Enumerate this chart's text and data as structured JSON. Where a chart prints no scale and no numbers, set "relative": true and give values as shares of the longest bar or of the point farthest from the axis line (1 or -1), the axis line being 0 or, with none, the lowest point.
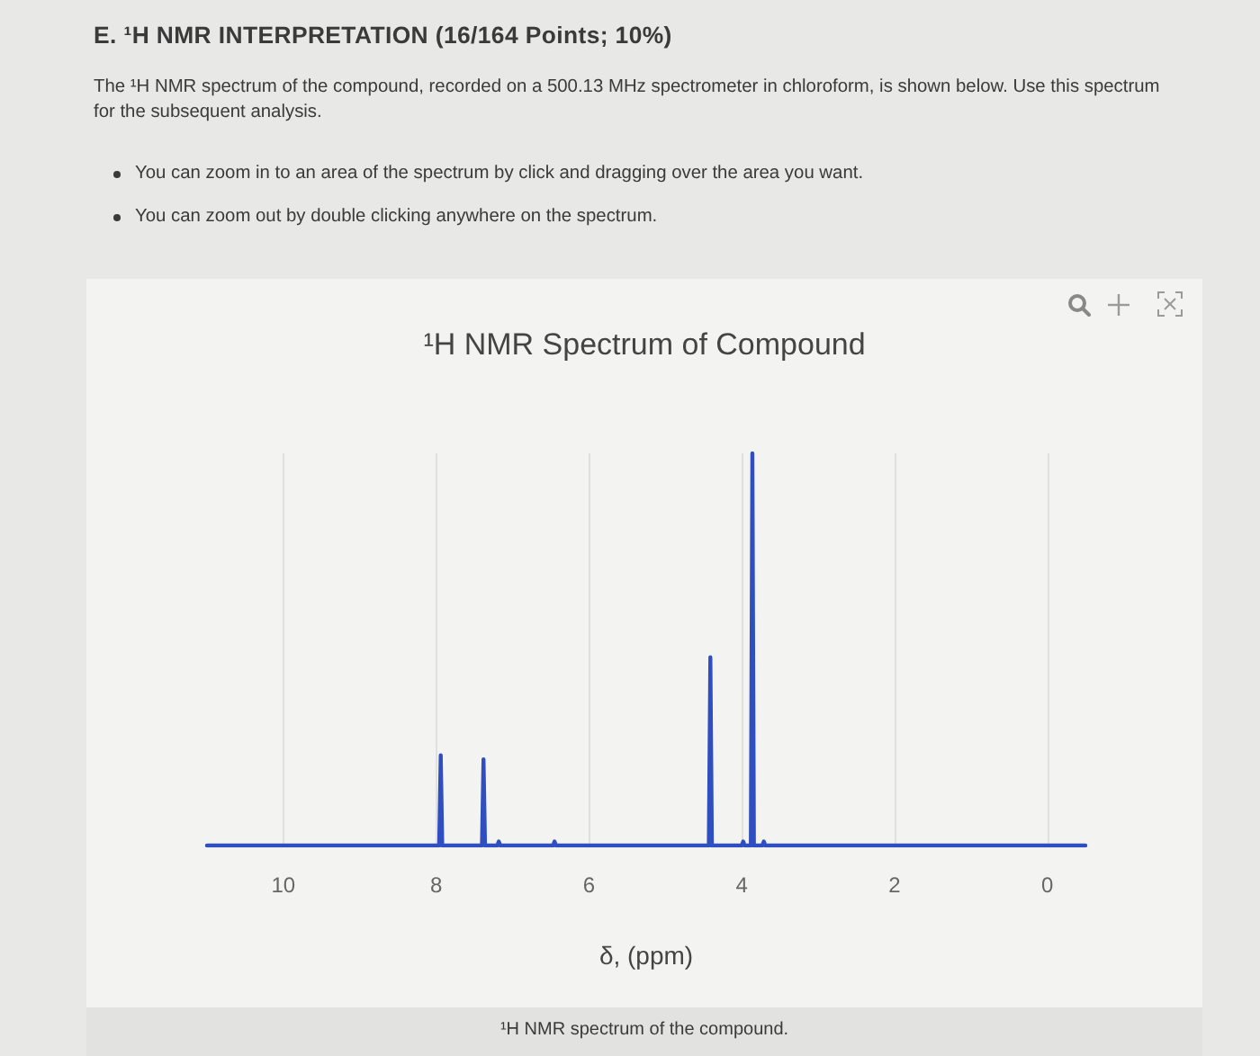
{
  "chart_data": {
    "type": "line",
    "title": "¹H NMR Spectrum of Compound",
    "xlabel": "δ, (ppm)",
    "annotations": [
      "E. ¹H NMR INTERPRETATION (16/164 Points; 10%)",
      "The ¹H NMR spectrum of the compound, recorded on a 500.13 MHz spectrometer in chloroform, is shown below. Use this spectrum for the subsequent analysis.",
      "You can zoom in to an area of the spectrum by click and dragging over the area you want.",
      "You can zoom out by double clicking anywhere on the spectrum.",
      "¹H NMR spectrum of the compound."
    ],
    "x": [
      11,
      7.96,
      7.94,
      7.92,
      7.4,
      7.38,
      7.36,
      7.2,
      7.18,
      7.16,
      6.47,
      6.45,
      6.43,
      4.43,
      4.41,
      4.39,
      4.0,
      3.98,
      3.96,
      3.88,
      3.86,
      3.84,
      3.73,
      3.71,
      3.69,
      -0.5
    ],
    "values": [
      0,
      0,
      0.23,
      0,
      0,
      0.22,
      0,
      0,
      0.01,
      0,
      0,
      0.01,
      0,
      0,
      0.48,
      0,
      0,
      0.01,
      0,
      0,
      1,
      0,
      0,
      0.01,
      0,
      0
    ],
    "color": "#2f4fc0",
    "relative": true,
    "xlim": [
      11,
      -0.5
    ],
    "xticks": [
      10,
      8,
      6,
      4,
      2,
      0
    ],
    "grid": "x",
    "marker": "none",
    "line_style": "solid",
    "tick_labels": "x"
  }
}
